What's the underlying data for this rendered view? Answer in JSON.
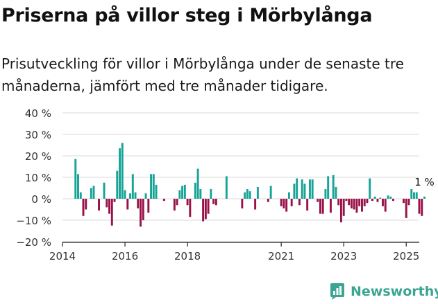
{
  "header": {
    "title": "Priserna på villor steg i Mörbylånga",
    "subtitle": "Prisutveckling för villor i Mörbylånga under de senaste tre månaderna, jämfört med tre månader tidigare."
  },
  "brand": {
    "name": "Newsworthy",
    "icon": "newsworthy-logo-icon",
    "color": "#3aa592"
  },
  "colors": {
    "positive": "#17a398",
    "negative": "#99124a",
    "grid": "#d9d9d9",
    "axis": "#222222"
  },
  "chart_data": {
    "type": "bar",
    "title": "Priserna på villor steg i Mörbylånga",
    "subtitle": "Prisutveckling för villor i Mörbylånga under de senaste tre månaderna, jämfört med tre månader tidigare.",
    "xlabel": "",
    "ylabel": "",
    "x_ticks": [
      "2014",
      "2016",
      "2018",
      "2021",
      "2023",
      "2025"
    ],
    "y_ticks": [
      "40 %",
      "30 %",
      "20 %",
      "10 %",
      "0 %",
      "−10 %",
      "−20 %"
    ],
    "ylim": [
      -20,
      40
    ],
    "xlim": [
      "2014-01",
      "2025-06"
    ],
    "grid": true,
    "last_label": "1 %",
    "series": [
      {
        "values": [
          [
            "2014-06",
            18.5
          ],
          [
            "2014-07",
            11.5
          ],
          [
            "2014-08",
            3.0
          ],
          [
            "2014-09",
            -8.0
          ],
          [
            "2014-10",
            -5.0
          ],
          [
            "2014-12",
            5.0
          ],
          [
            "2015-01",
            6.0
          ],
          [
            "2015-03",
            -5.5
          ],
          [
            "2015-05",
            7.5
          ],
          [
            "2015-06",
            -4.0
          ],
          [
            "2015-07",
            -7.0
          ],
          [
            "2015-08",
            -12.5
          ],
          [
            "2015-09",
            -1.5
          ],
          [
            "2015-10",
            13.0
          ],
          [
            "2015-11",
            23.5
          ],
          [
            "2015-12",
            26.0
          ],
          [
            "2016-01",
            4.0
          ],
          [
            "2016-02",
            -5.0
          ],
          [
            "2016-03",
            2.5
          ],
          [
            "2016-04",
            11.5
          ],
          [
            "2016-05",
            3.0
          ],
          [
            "2016-06",
            -4.5
          ],
          [
            "2016-07",
            -13.0
          ],
          [
            "2016-08",
            -10.0
          ],
          [
            "2016-09",
            2.5
          ],
          [
            "2016-10",
            -6.5
          ],
          [
            "2016-11",
            11.5
          ],
          [
            "2016-12",
            11.5
          ],
          [
            "2017-01",
            6.5
          ],
          [
            "2017-04",
            -1.0
          ],
          [
            "2017-08",
            -5.5
          ],
          [
            "2017-09",
            -3.0
          ],
          [
            "2017-10",
            4.0
          ],
          [
            "2017-11",
            6.0
          ],
          [
            "2017-12",
            6.5
          ],
          [
            "2018-01",
            -3.0
          ],
          [
            "2018-02",
            -8.5
          ],
          [
            "2018-04",
            7.5
          ],
          [
            "2018-05",
            14.0
          ],
          [
            "2018-06",
            4.5
          ],
          [
            "2018-07",
            -10.5
          ],
          [
            "2018-08",
            -9.5
          ],
          [
            "2018-09",
            -7.0
          ],
          [
            "2018-10",
            4.5
          ],
          [
            "2018-11",
            -2.5
          ],
          [
            "2018-12",
            -3.0
          ],
          [
            "2019-04",
            10.5
          ],
          [
            "2019-10",
            -4.5
          ],
          [
            "2019-11",
            3.0
          ],
          [
            "2019-12",
            4.5
          ],
          [
            "2020-01",
            3.5
          ],
          [
            "2020-03",
            -5.0
          ],
          [
            "2020-04",
            5.5
          ],
          [
            "2020-08",
            -1.5
          ],
          [
            "2020-09",
            6.0
          ],
          [
            "2021-01",
            -3.5
          ],
          [
            "2021-02",
            -4.5
          ],
          [
            "2021-03",
            -6.0
          ],
          [
            "2021-04",
            3.0
          ],
          [
            "2021-05",
            -3.5
          ],
          [
            "2021-06",
            7.0
          ],
          [
            "2021-07",
            9.5
          ],
          [
            "2021-08",
            -3.0
          ],
          [
            "2021-09",
            9.0
          ],
          [
            "2021-10",
            7.0
          ],
          [
            "2021-11",
            -5.5
          ],
          [
            "2021-12",
            9.0
          ],
          [
            "2022-01",
            9.0
          ],
          [
            "2022-03",
            -1.5
          ],
          [
            "2022-04",
            -7.0
          ],
          [
            "2022-05",
            -7.0
          ],
          [
            "2022-06",
            4.5
          ],
          [
            "2022-07",
            10.5
          ],
          [
            "2022-08",
            -6.5
          ],
          [
            "2022-09",
            11.0
          ],
          [
            "2022-10",
            5.5
          ],
          [
            "2022-11",
            -3.0
          ],
          [
            "2022-12",
            -11.0
          ],
          [
            "2023-01",
            -8.0
          ],
          [
            "2023-02",
            -1.0
          ],
          [
            "2023-03",
            -3.0
          ],
          [
            "2023-04",
            -4.5
          ],
          [
            "2023-05",
            -5.0
          ],
          [
            "2023-06",
            -6.5
          ],
          [
            "2023-07",
            -3.5
          ],
          [
            "2023-08",
            -6.0
          ],
          [
            "2023-09",
            -3.5
          ],
          [
            "2023-10",
            -2.0
          ],
          [
            "2023-11",
            9.5
          ],
          [
            "2023-12",
            -1.0
          ],
          [
            "2024-01",
            1.0
          ],
          [
            "2024-02",
            -1.5
          ],
          [
            "2024-03",
            0.5
          ],
          [
            "2024-04",
            -3.5
          ],
          [
            "2024-05",
            -6.0
          ],
          [
            "2024-06",
            1.5
          ],
          [
            "2024-07",
            1.0
          ],
          [
            "2024-08",
            -1.0
          ],
          [
            "2024-12",
            -2.0
          ],
          [
            "2025-01",
            -9.0
          ],
          [
            "2025-02",
            -3.0
          ],
          [
            "2025-03",
            4.5
          ],
          [
            "2025-04",
            3.0
          ],
          [
            "2025-05",
            3.0
          ],
          [
            "2025-06",
            -7.0
          ],
          [
            "2025-07",
            -8.0
          ],
          [
            "2025-08",
            1.0
          ]
        ]
      }
    ]
  }
}
